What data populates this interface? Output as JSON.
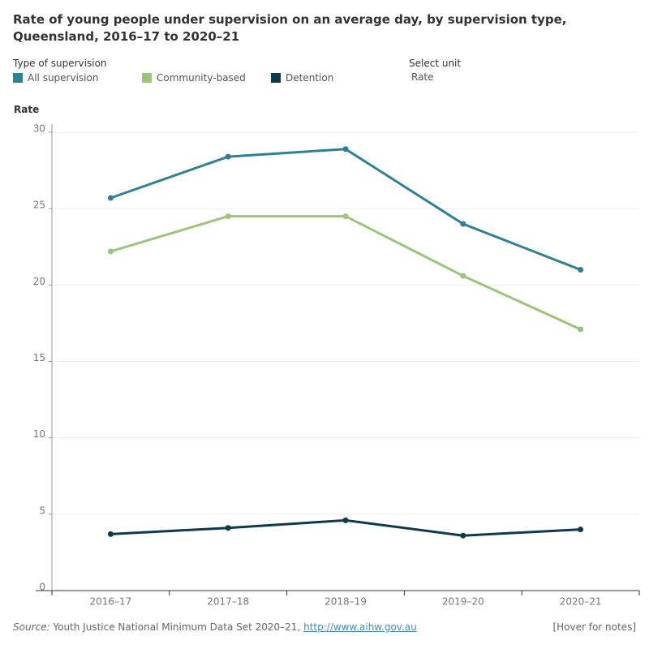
{
  "chart_data": {
    "type": "line",
    "title": "Rate of young people under supervision on an average day, by supervision type, Queensland, 2016–17 to 2020–21",
    "legend_title": "Type of supervision",
    "unit_selector_label": "Select unit",
    "unit_selector_value": "Rate",
    "y_label": "Rate",
    "categories": [
      "2016–17",
      "2017–18",
      "2018–19",
      "2019–20",
      "2020–21"
    ],
    "series": [
      {
        "name": "All supervision",
        "color": "#2e7f9a",
        "values": [
          25.7,
          28.4,
          28.9,
          24.0,
          21.0
        ]
      },
      {
        "name": "Community-based",
        "color": "#9bc57a",
        "values": [
          22.2,
          24.5,
          24.5,
          20.6,
          17.1
        ]
      },
      {
        "name": "Detention",
        "color": "#0e3a4d",
        "values": [
          3.7,
          4.1,
          4.6,
          3.6,
          4.0
        ]
      }
    ],
    "ylim": [
      0,
      30
    ],
    "yticks": [
      0,
      5,
      10,
      15,
      20,
      25,
      30
    ],
    "grid": true,
    "source_label": "Source:",
    "source_text": "Youth Justice National Minimum Data Set 2020–21,",
    "source_link": "http://www.aihw.gov.au",
    "notes_link": "[Hover for notes]"
  }
}
